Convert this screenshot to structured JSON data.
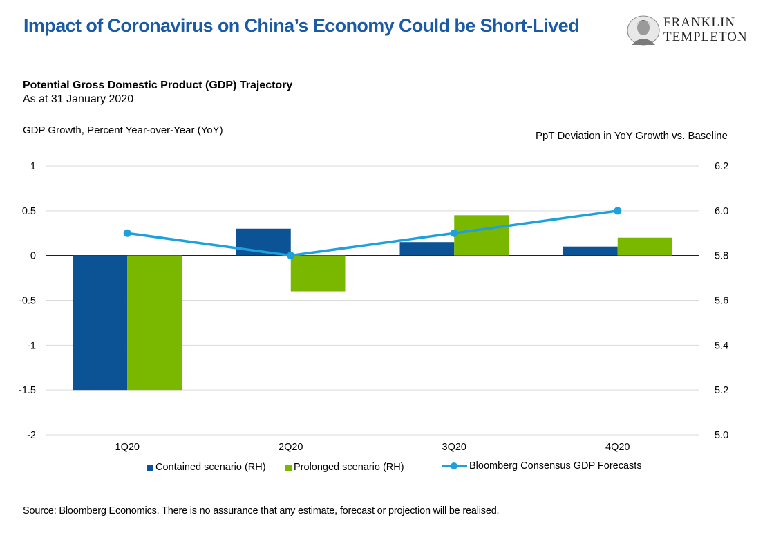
{
  "header": {
    "title": "Impact of Coronavirus on China’s Economy Could be Short-Lived",
    "logo_line1": "FRANKLIN",
    "logo_line2": "TEMPLETON"
  },
  "subtitle": "Potential Gross Domestic Product (GDP) Trajectory",
  "as_at": "As at 31 January 2020",
  "source": "Source: Bloomberg Economics. There is no assurance that any estimate, forecast or projection will be realised.",
  "colors": {
    "contained": "#0b5394",
    "prolonged": "#7ab800",
    "line": "#1ea0dc",
    "title": "#1a5aa6"
  },
  "chart_data": {
    "type": "bar",
    "title": "Potential Gross Domestic Product (GDP) Trajectory",
    "subtitle": "As at 31 January 2020",
    "categories": [
      "1Q20",
      "2Q20",
      "3Q20",
      "4Q20"
    ],
    "ylabel_left": "GDP Growth, Percent Year-over-Year (YoY)",
    "ylabel_right": "PpT Deviation in YoY Growth vs. Baseline",
    "ylim_left": [
      -2,
      1
    ],
    "ylim_right": [
      5.0,
      6.2
    ],
    "ticks_left": [
      "1",
      "0.5",
      "0",
      "-0.5",
      "-1",
      "-1.5",
      "-2"
    ],
    "ticks_right": [
      "6.2",
      "6.0",
      "5.8",
      "5.6",
      "5.4",
      "5.2",
      "5.0"
    ],
    "grid": true,
    "legend_position": "bottom",
    "series": [
      {
        "name": "Contained scenario (RH)",
        "type": "bar",
        "values": [
          -1.5,
          0.3,
          0.15,
          0.1
        ]
      },
      {
        "name": "Prolonged scenario (RH)",
        "type": "bar",
        "values": [
          -1.5,
          -0.4,
          0.45,
          0.2
        ]
      },
      {
        "name": "Bloomberg Consensus GDP Forecasts",
        "type": "line",
        "values": [
          5.9,
          5.8,
          5.9,
          6.0
        ]
      }
    ]
  }
}
